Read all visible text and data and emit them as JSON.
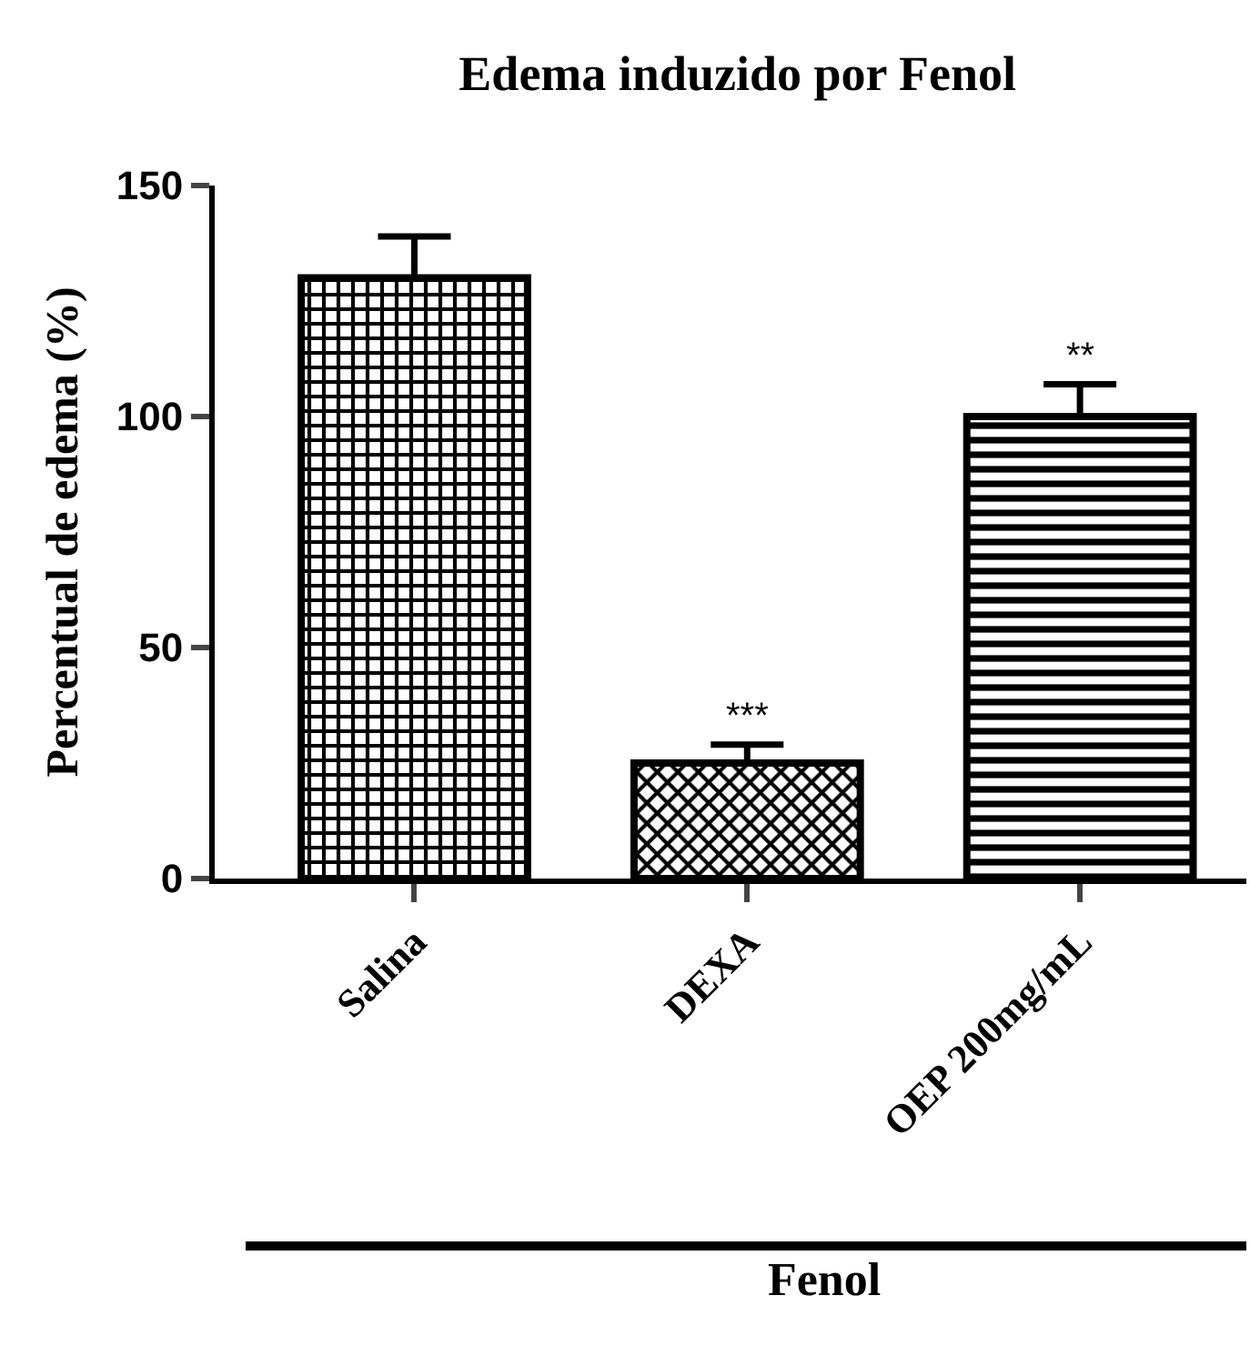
{
  "chart_data": {
    "type": "bar",
    "title": "Edema induzido por Fenol",
    "xlabel": "Fenol",
    "ylabel": "Percentual de edema (%)",
    "categories": [
      "Salina",
      "DEXA",
      "OEP 200mg/mL"
    ],
    "values": [
      130,
      25,
      100
    ],
    "colors": [
      "#000000",
      "#000000",
      "#000000"
    ],
    "errors": [
      [
        130,
        139
      ],
      [
        25,
        29
      ],
      [
        100,
        107
      ]
    ],
    "ylim": [
      0,
      150
    ],
    "yticks": [
      0,
      50,
      100,
      150
    ],
    "grid": false,
    "legend": false,
    "annotations": [
      {
        "text": "***",
        "x": "DEXA",
        "y": 29
      },
      {
        "text": "**",
        "x": "OEP 200mg/mL",
        "y": 107
      }
    ]
  }
}
